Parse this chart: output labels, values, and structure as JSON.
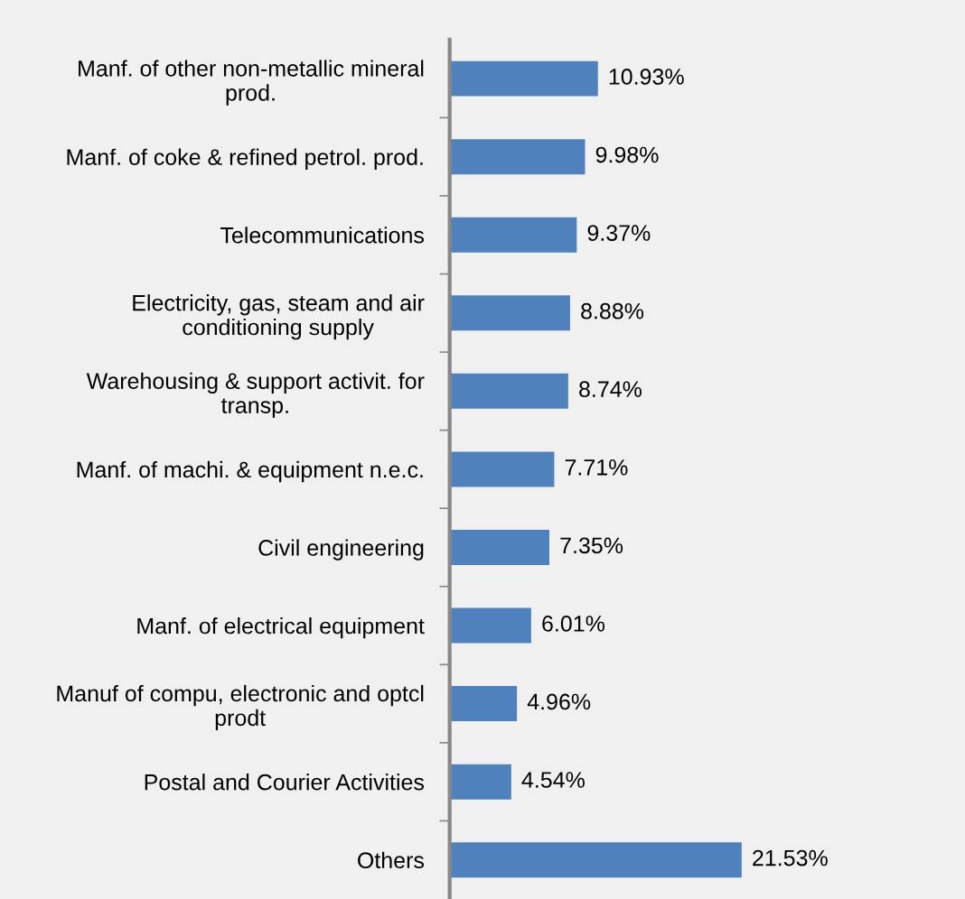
{
  "chart_data": {
    "type": "bar",
    "orientation": "horizontal",
    "categories": [
      "Manf. of other non-metallic mineral prod.",
      "Manf. of coke & refined petrol. prod.",
      "Telecommunications",
      "Electricity, gas, steam and air conditioning supply",
      "Warehousing & support activit. for transp.",
      "Manf. of machi. & equipment n.e.c.",
      "Civil engineering",
      "Manf. of electrical equipment",
      "Manuf of compu, electronic and optcl prodt",
      "Postal and Courier Activities",
      "Others"
    ],
    "values": [
      10.93,
      9.98,
      9.37,
      8.88,
      8.74,
      7.71,
      7.35,
      6.01,
      4.96,
      4.54,
      21.53
    ],
    "value_labels": [
      "10.93%",
      "9.98%",
      "9.37%",
      "8.88%",
      "8.74%",
      "7.71%",
      "7.35%",
      "6.01%",
      "4.96%",
      "4.54%",
      "21.53%"
    ],
    "color": "#4f81bd",
    "xlim": [
      0,
      38
    ],
    "tick_labels": "y",
    "grid": false,
    "legend": false
  }
}
